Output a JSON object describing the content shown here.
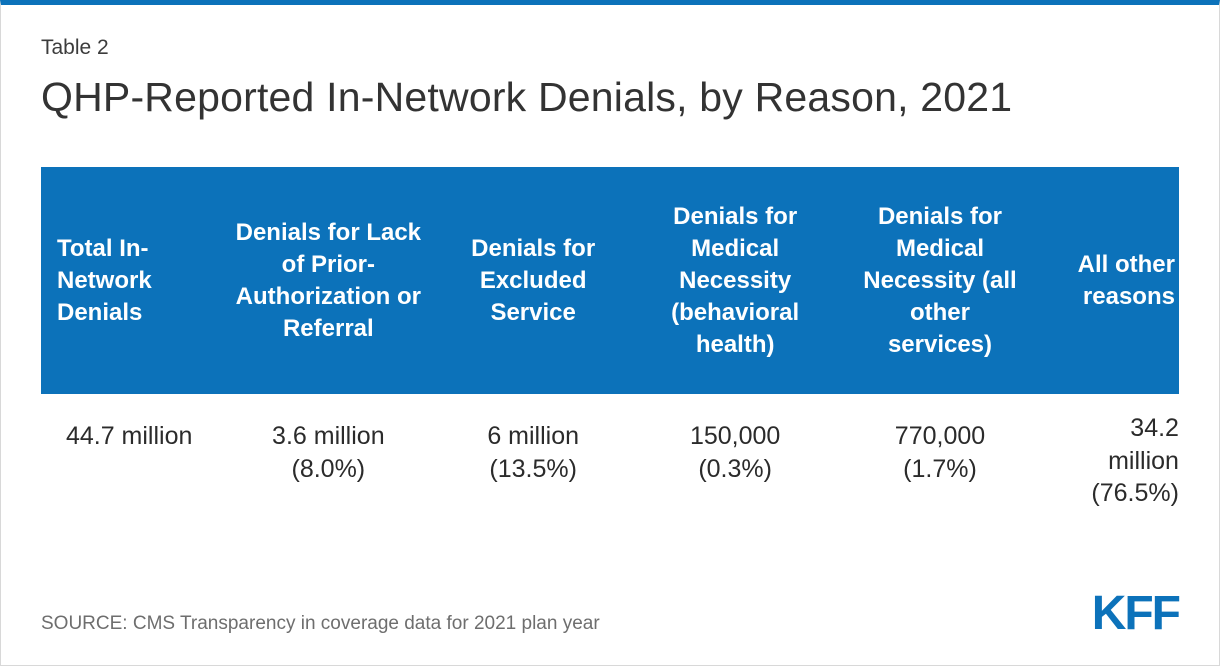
{
  "page": {
    "label": "Table 2",
    "title": "QHP-Reported In-Network Denials, by Reason, 2021",
    "source": "SOURCE: CMS Transparency in coverage data for 2021 plan year",
    "logo": "KFF"
  },
  "colors": {
    "accent": "#0c72ba",
    "header_bg": "#0c72ba",
    "header_text": "#ffffff"
  },
  "table": {
    "headers": [
      "Total In-Network Denials",
      "Denials for Lack of Prior-Authorization or Referral",
      "Denials for Excluded Service",
      "Denials for Medical Necessity (behavioral health)",
      "Denials for Medical Necessity (all other services)",
      "All other reasons"
    ],
    "row": [
      {
        "amount": "44.7 million",
        "pct": ""
      },
      {
        "amount": "3.6 million",
        "pct": "(8.0%)"
      },
      {
        "amount": "6 million",
        "pct": "(13.5%)"
      },
      {
        "amount": "150,000",
        "pct": "(0.3%)"
      },
      {
        "amount": "770,000",
        "pct": "(1.7%)"
      },
      {
        "amount": "34.2 million",
        "pct": "(76.5%)"
      }
    ]
  },
  "chart_data": {
    "type": "table",
    "title": "QHP-Reported In-Network Denials, by Reason, 2021",
    "columns": [
      "Total In-Network Denials",
      "Denials for Lack of Prior-Authorization or Referral",
      "Denials for Excluded Service",
      "Denials for Medical Necessity (behavioral health)",
      "Denials for Medical Necessity (all other services)",
      "All other reasons"
    ],
    "rows": [
      [
        "44.7 million",
        "3.6 million (8.0%)",
        "6 million (13.5%)",
        "150,000 (0.3%)",
        "770,000 (1.7%)",
        "34.2 million (76.5%)"
      ]
    ],
    "source": "SOURCE: CMS Transparency in coverage data for 2021 plan year"
  }
}
